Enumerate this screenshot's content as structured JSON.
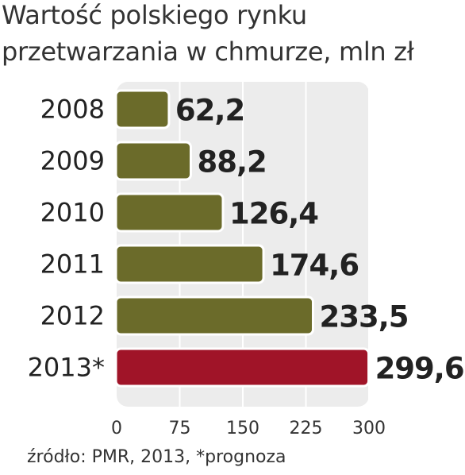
{
  "title_lines": [
    "Wartość polskiego rynku",
    "przetwarzania w chmurze, mln zł"
  ],
  "source": "źródło: PMR, 2013, *prognoza",
  "colors": {
    "bar": "#6b6b2a",
    "bar_highlight": "#a01428",
    "bar_outline": "#ffffff",
    "panel": "#ececec",
    "grid": "#ffffff",
    "label": "#222222"
  },
  "chart_data": {
    "type": "bar",
    "orientation": "horizontal",
    "categories": [
      "2008",
      "2009",
      "2010",
      "2011",
      "2012",
      "2013*"
    ],
    "values": [
      62.2,
      88.2,
      126.4,
      174.6,
      233.5,
      299.6
    ],
    "value_labels": [
      "62,2",
      "88,2",
      "126,4",
      "174,6",
      "233,5",
      "299,6"
    ],
    "highlighted": [
      false,
      false,
      false,
      false,
      false,
      true
    ],
    "xlim": [
      0,
      300
    ],
    "xticks": [
      0,
      75,
      150,
      225,
      300
    ],
    "grid": true,
    "legend": "none",
    "title": "Wartość polskiego rynku przetwarzania w chmurze, mln zł",
    "xlabel": "",
    "ylabel": ""
  }
}
